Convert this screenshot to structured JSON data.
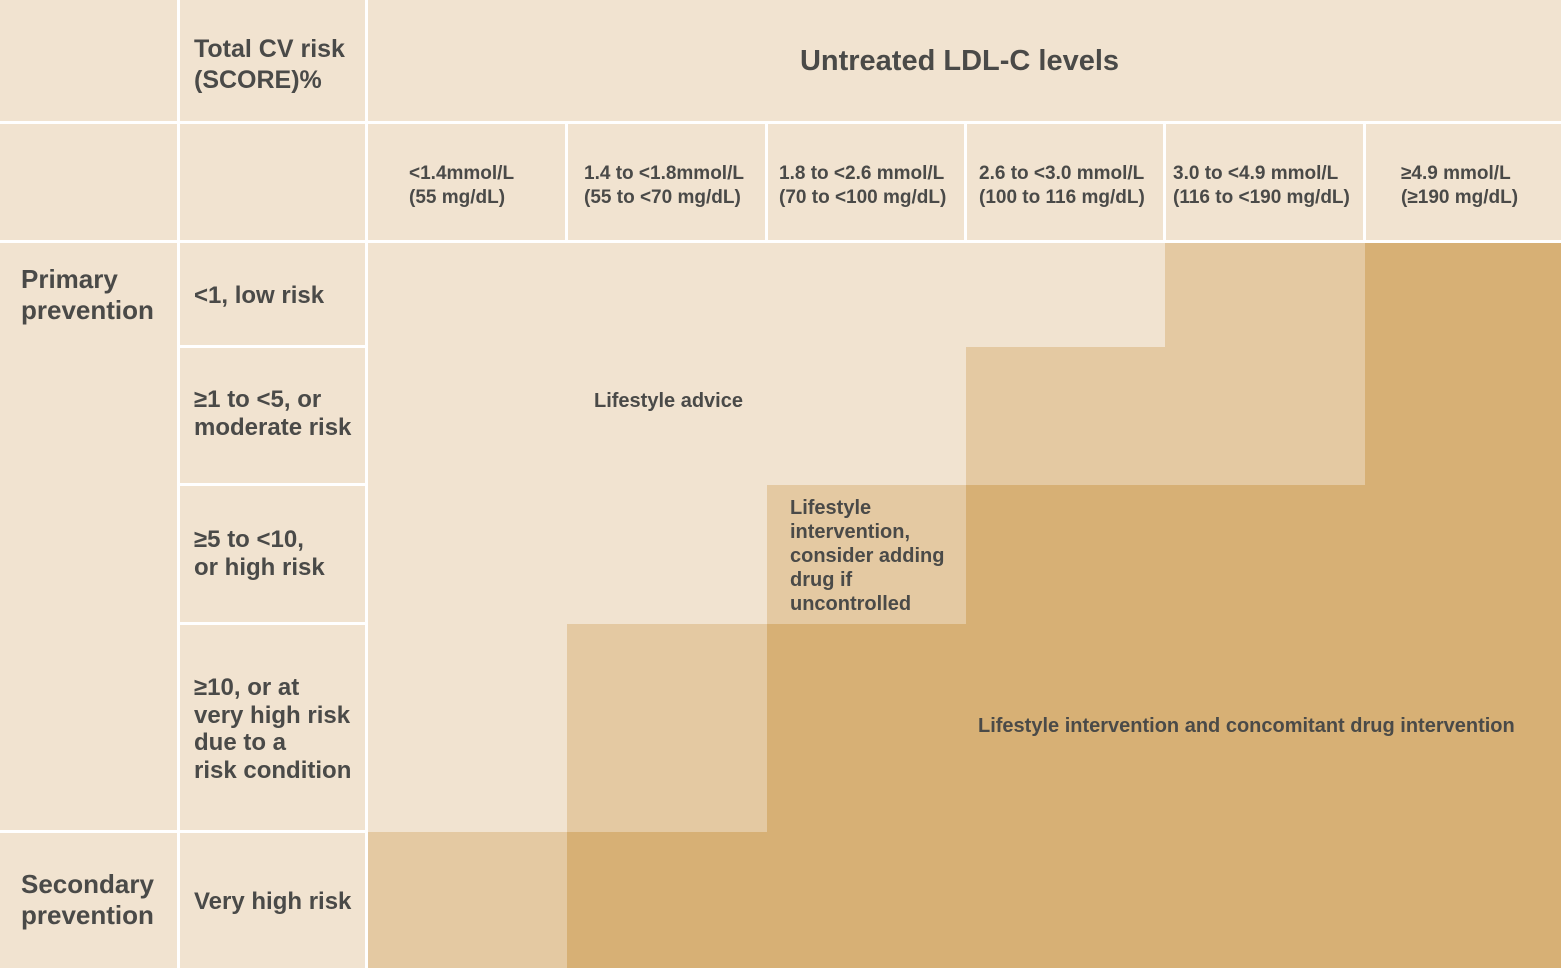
{
  "header": {
    "risk_label_lines": [
      "Total CV risk",
      "(SCORE)%"
    ],
    "ldl_title": "Untreated LDL-C levels"
  },
  "columns": [
    {
      "line1": "<1.4mmol/L",
      "line2": "(55 mg/dL)"
    },
    {
      "line1": "1.4 to <1.8mmol/L",
      "line2": "(55 to <70 mg/dL)"
    },
    {
      "line1": "1.8 to <2.6 mmol/L",
      "line2": "(70 to <100 mg/dL)"
    },
    {
      "line1": "2.6 to <3.0 mmol/L",
      "line2": "(100 to 116 mg/dL)"
    },
    {
      "line1": "3.0 to <4.9 mmol/L",
      "line2": "(116 to <190 mg/dL)"
    },
    {
      "line1": "≥4.9 mmol/L",
      "line2": "(≥190 mg/dL)"
    }
  ],
  "groups": {
    "primary_lines": [
      "Primary",
      "prevention"
    ],
    "secondary_lines": [
      "Secondary",
      "prevention"
    ]
  },
  "rows": [
    {
      "lines": [
        "<1, low risk"
      ]
    },
    {
      "lines": [
        "≥1 to <5, or",
        "moderate risk"
      ]
    },
    {
      "lines": [
        "≥5 to <10,",
        "or high risk"
      ]
    },
    {
      "lines": [
        "≥10, or at",
        "very high risk",
        "due to a",
        "risk condition"
      ]
    },
    {
      "lines": [
        "Very high risk"
      ]
    }
  ],
  "regions": {
    "lifestyle_advice": "Lifestyle advice",
    "consider_drug_lines": [
      "Lifestyle",
      "intervention,",
      "consider adding",
      "drug if",
      "uncontrolled"
    ],
    "concomitant": "Lifestyle intervention and concomitant drug intervention"
  },
  "colors": {
    "light": "#f1e3d0",
    "mid": "#e4c9a2",
    "dark": "#d7b075",
    "text": "#4a4a48",
    "grid_lines": "#ffffff"
  }
}
